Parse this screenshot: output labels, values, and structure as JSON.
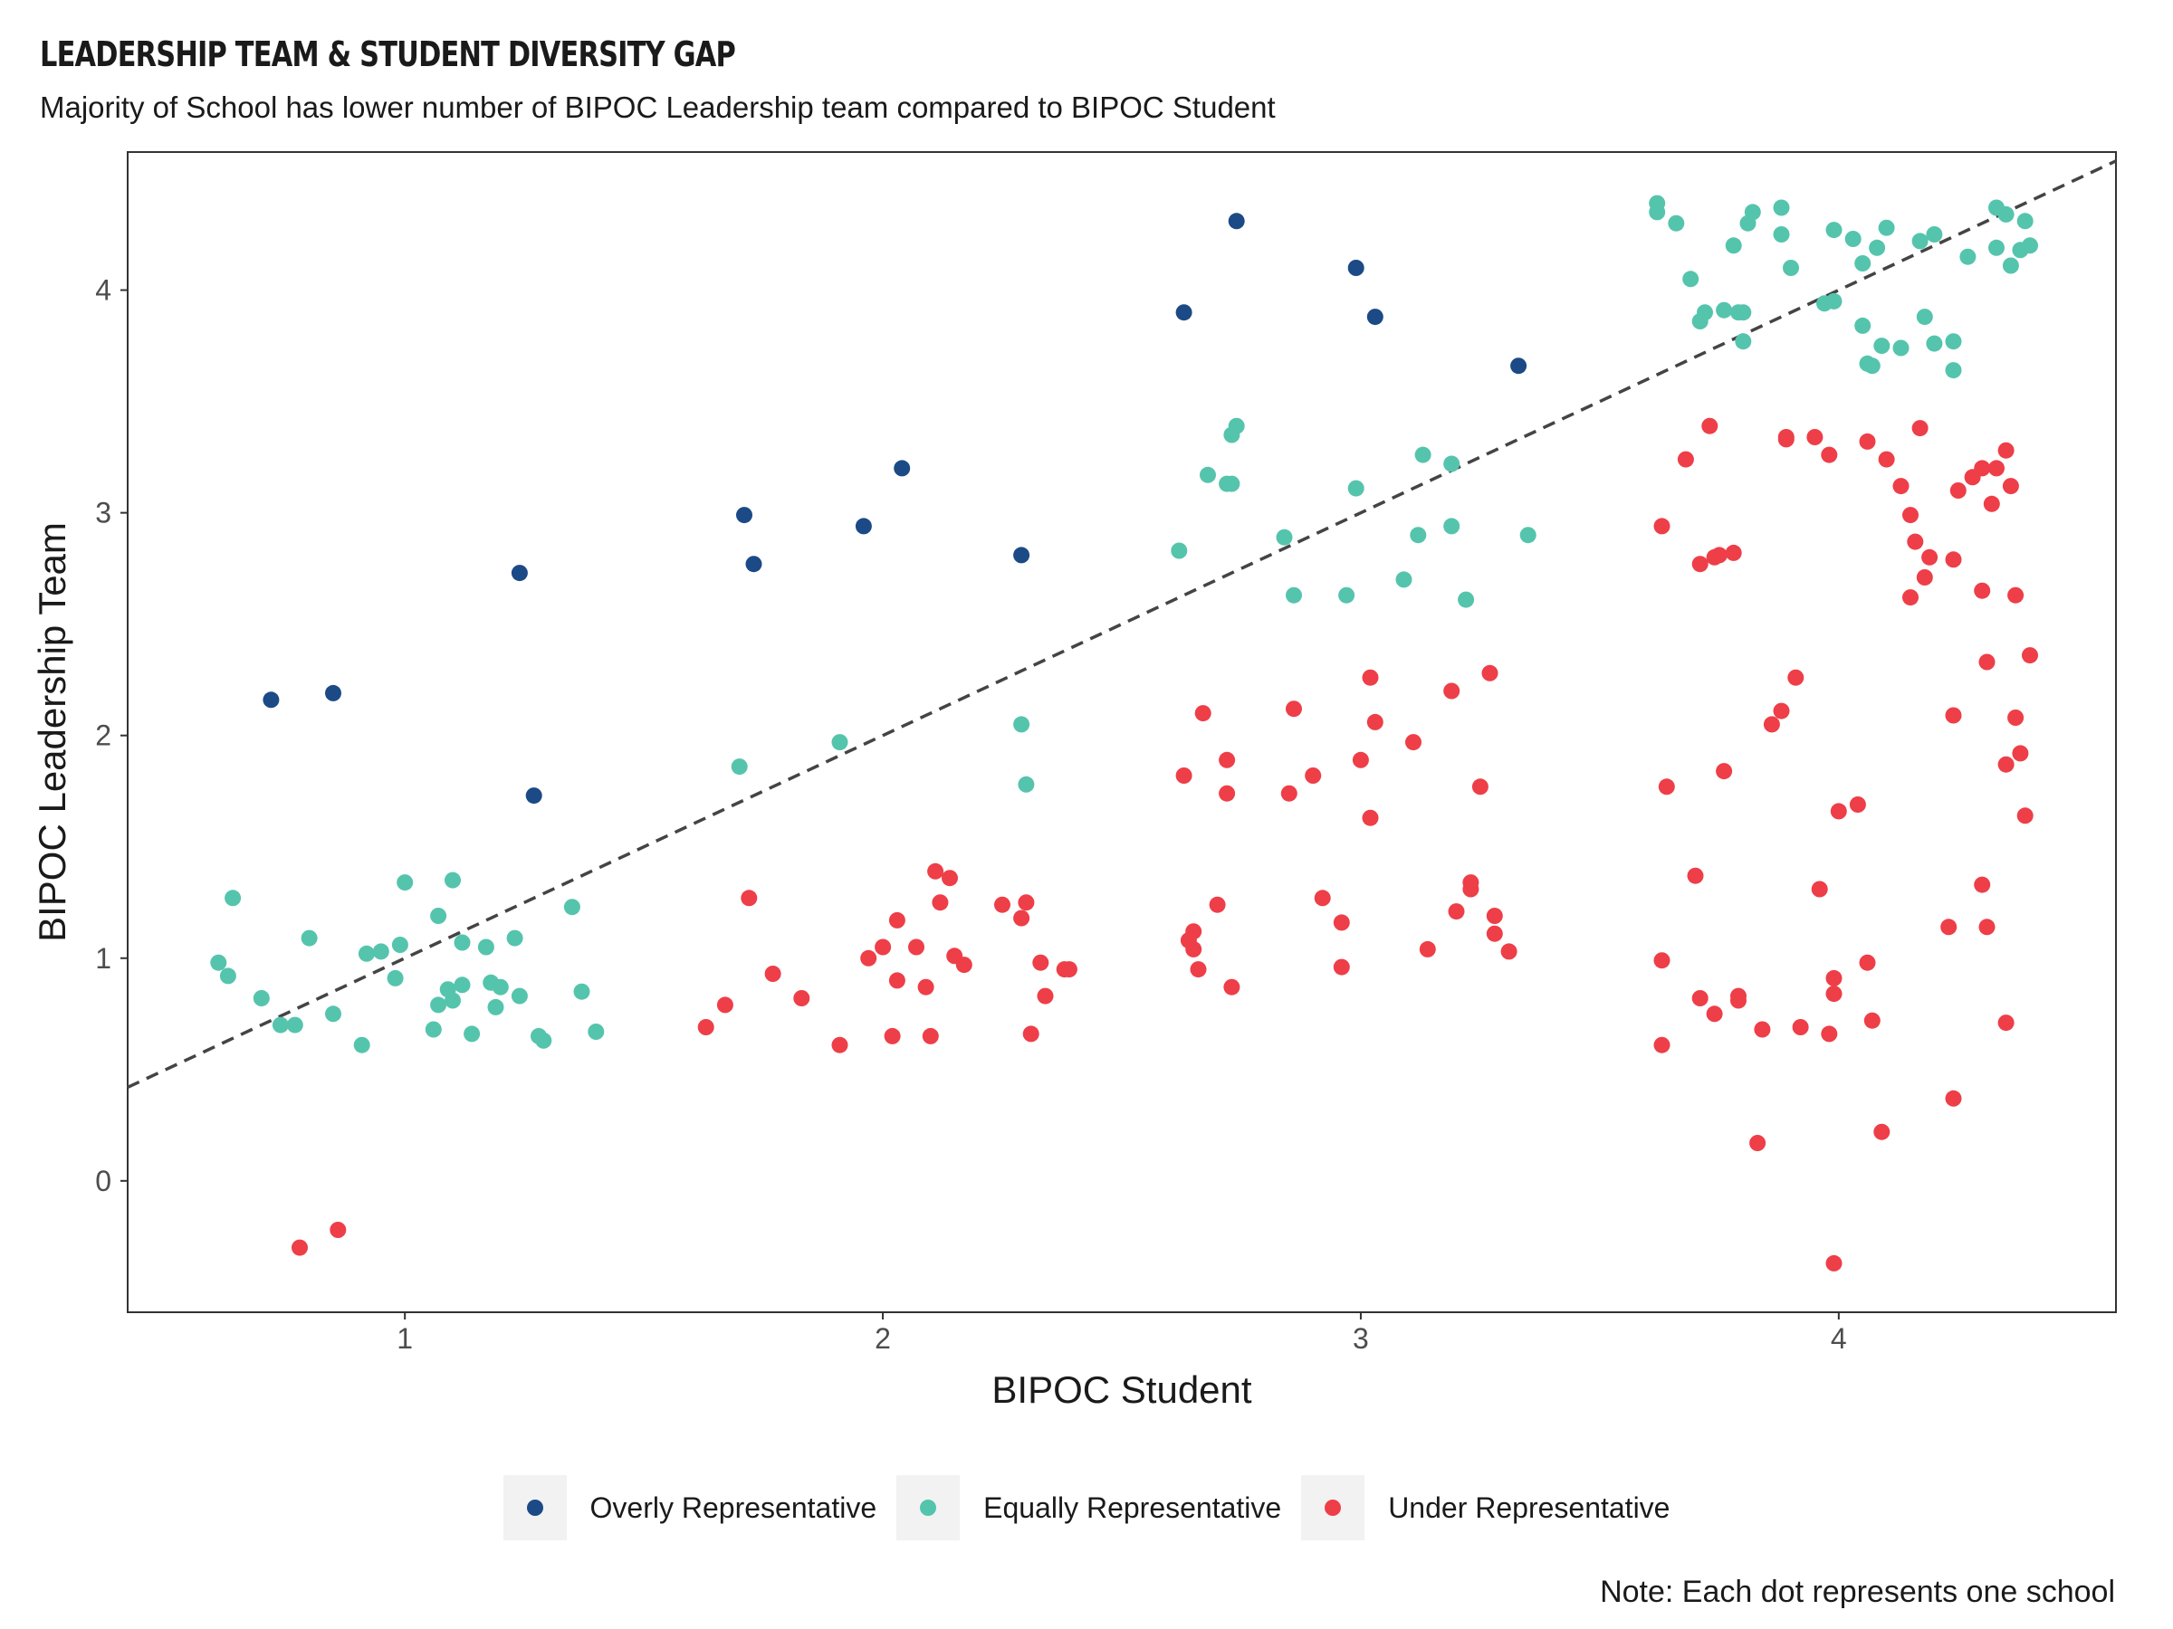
{
  "title": "LEADERSHIP TEAM & STUDENT DIVERSITY GAP",
  "subtitle": "Majority of School has lower number of BIPOC Leadership team compared to BIPOC Student",
  "caption": "Note: Each dot represents one school",
  "colors": {
    "overly": "#1b4a86",
    "equally": "#55c4ad",
    "under": "#ee3e48"
  },
  "legend": [
    {
      "label": "Overly Representative",
      "color": "#1b4a86"
    },
    {
      "label": "Equally Representative",
      "color": "#55c4ad"
    },
    {
      "label": "Under Representative",
      "color": "#ee3e48"
    }
  ],
  "chart_data": {
    "type": "scatter",
    "title": "LEADERSHIP TEAM & STUDENT DIVERSITY GAP",
    "subtitle": "Majority of School has lower number of BIPOC Leadership team compared to BIPOC Student",
    "xlabel": "BIPOC Student",
    "ylabel": "BIPOC Leadership Team",
    "xlim": [
      0.42,
      4.58
    ],
    "ylim": [
      -0.59,
      4.62
    ],
    "xticks": [
      1,
      2,
      3,
      4
    ],
    "yticks": [
      0,
      1,
      2,
      3,
      4
    ],
    "grid": false,
    "legend_position": "bottom",
    "reference_line": {
      "style": "dashed",
      "slope": 1,
      "intercept": 0
    },
    "series": [
      {
        "name": "Overly Representative",
        "color": "#1b4a86",
        "points": [
          [
            0.72,
            2.16
          ],
          [
            0.85,
            2.19
          ],
          [
            1.24,
            2.73
          ],
          [
            1.27,
            1.73
          ],
          [
            1.71,
            2.99
          ],
          [
            1.73,
            2.77
          ],
          [
            1.96,
            2.94
          ],
          [
            2.04,
            3.2
          ],
          [
            2.29,
            2.81
          ],
          [
            2.63,
            3.9
          ],
          [
            2.74,
            4.31
          ],
          [
            2.99,
            4.1
          ],
          [
            3.03,
            3.88
          ],
          [
            3.33,
            3.66
          ]
        ]
      },
      {
        "name": "Equally Representative",
        "color": "#55c4ad",
        "points": [
          [
            0.61,
            0.98
          ],
          [
            0.63,
            0.92
          ],
          [
            0.64,
            1.27
          ],
          [
            0.7,
            0.82
          ],
          [
            0.74,
            0.7
          ],
          [
            0.77,
            0.7
          ],
          [
            0.8,
            1.09
          ],
          [
            0.85,
            0.75
          ],
          [
            0.91,
            0.61
          ],
          [
            0.92,
            1.02
          ],
          [
            0.95,
            1.03
          ],
          [
            0.98,
            0.91
          ],
          [
            0.99,
            1.06
          ],
          [
            1.0,
            1.34
          ],
          [
            1.06,
            0.68
          ],
          [
            1.07,
            0.79
          ],
          [
            1.07,
            1.19
          ],
          [
            1.09,
            0.86
          ],
          [
            1.1,
            0.81
          ],
          [
            1.1,
            1.35
          ],
          [
            1.12,
            1.07
          ],
          [
            1.12,
            0.88
          ],
          [
            1.14,
            0.66
          ],
          [
            1.17,
            1.05
          ],
          [
            1.18,
            0.89
          ],
          [
            1.19,
            0.78
          ],
          [
            1.2,
            0.87
          ],
          [
            1.23,
            1.09
          ],
          [
            1.24,
            0.83
          ],
          [
            1.28,
            0.65
          ],
          [
            1.29,
            0.63
          ],
          [
            1.35,
            1.23
          ],
          [
            1.37,
            0.85
          ],
          [
            1.4,
            0.67
          ],
          [
            1.7,
            1.86
          ],
          [
            1.91,
            1.97
          ],
          [
            2.29,
            2.05
          ],
          [
            2.3,
            1.78
          ],
          [
            2.62,
            2.83
          ],
          [
            2.68,
            3.17
          ],
          [
            2.72,
            3.13
          ],
          [
            2.73,
            3.35
          ],
          [
            2.74,
            3.39
          ],
          [
            2.73,
            3.13
          ],
          [
            2.84,
            2.89
          ],
          [
            2.86,
            2.63
          ],
          [
            2.97,
            2.63
          ],
          [
            2.99,
            3.11
          ],
          [
            3.09,
            2.7
          ],
          [
            3.12,
            2.9
          ],
          [
            3.13,
            3.26
          ],
          [
            3.19,
            3.22
          ],
          [
            3.19,
            2.94
          ],
          [
            3.22,
            2.61
          ],
          [
            3.35,
            2.9
          ],
          [
            3.62,
            4.39
          ],
          [
            3.62,
            4.35
          ],
          [
            3.66,
            4.3
          ],
          [
            3.69,
            4.05
          ],
          [
            3.71,
            3.86
          ],
          [
            3.72,
            3.9
          ],
          [
            3.76,
            3.91
          ],
          [
            3.78,
            4.2
          ],
          [
            3.79,
            3.9
          ],
          [
            3.8,
            3.77
          ],
          [
            3.8,
            3.9
          ],
          [
            3.81,
            4.3
          ],
          [
            3.82,
            4.35
          ],
          [
            3.88,
            4.37
          ],
          [
            3.88,
            4.25
          ],
          [
            3.9,
            4.1
          ],
          [
            3.97,
            3.94
          ],
          [
            3.99,
            4.27
          ],
          [
            3.99,
            3.95
          ],
          [
            4.03,
            4.23
          ],
          [
            4.05,
            3.84
          ],
          [
            4.05,
            4.12
          ],
          [
            4.06,
            3.67
          ],
          [
            4.07,
            3.66
          ],
          [
            4.08,
            4.19
          ],
          [
            4.09,
            3.75
          ],
          [
            4.1,
            4.28
          ],
          [
            4.13,
            3.74
          ],
          [
            4.17,
            4.22
          ],
          [
            4.18,
            3.88
          ],
          [
            4.2,
            4.25
          ],
          [
            4.2,
            3.76
          ],
          [
            4.24,
            3.77
          ],
          [
            4.24,
            3.64
          ],
          [
            4.27,
            4.15
          ],
          [
            4.33,
            4.37
          ],
          [
            4.33,
            4.19
          ],
          [
            4.35,
            4.34
          ],
          [
            4.36,
            4.11
          ],
          [
            4.38,
            4.18
          ],
          [
            4.39,
            4.31
          ],
          [
            4.4,
            4.2
          ]
        ]
      },
      {
        "name": "Under Representative",
        "color": "#ee3e48",
        "points": [
          [
            0.78,
            -0.3
          ],
          [
            0.86,
            -0.22
          ],
          [
            1.63,
            0.69
          ],
          [
            1.67,
            0.79
          ],
          [
            1.72,
            1.27
          ],
          [
            1.77,
            0.93
          ],
          [
            1.83,
            0.82
          ],
          [
            1.91,
            0.61
          ],
          [
            1.97,
            1.0
          ],
          [
            2.0,
            1.05
          ],
          [
            2.02,
            0.65
          ],
          [
            2.03,
            1.17
          ],
          [
            2.03,
            0.9
          ],
          [
            2.07,
            1.05
          ],
          [
            2.09,
            0.87
          ],
          [
            2.1,
            0.65
          ],
          [
            2.11,
            1.39
          ],
          [
            2.12,
            1.25
          ],
          [
            2.14,
            1.36
          ],
          [
            2.15,
            1.01
          ],
          [
            2.17,
            0.97
          ],
          [
            2.25,
            1.24
          ],
          [
            2.29,
            1.18
          ],
          [
            2.3,
            1.25
          ],
          [
            2.31,
            0.66
          ],
          [
            2.33,
            0.98
          ],
          [
            2.34,
            0.83
          ],
          [
            2.38,
            0.95
          ],
          [
            2.39,
            0.95
          ],
          [
            2.63,
            1.82
          ],
          [
            2.64,
            1.08
          ],
          [
            2.65,
            1.04
          ],
          [
            2.65,
            1.12
          ],
          [
            2.66,
            0.95
          ],
          [
            2.67,
            2.1
          ],
          [
            2.7,
            1.24
          ],
          [
            2.72,
            1.74
          ],
          [
            2.72,
            1.89
          ],
          [
            2.73,
            0.87
          ],
          [
            2.85,
            1.74
          ],
          [
            2.86,
            2.12
          ],
          [
            2.9,
            1.82
          ],
          [
            2.92,
            1.27
          ],
          [
            2.96,
            1.16
          ],
          [
            2.96,
            0.96
          ],
          [
            3.0,
            1.89
          ],
          [
            3.02,
            2.26
          ],
          [
            3.02,
            1.63
          ],
          [
            3.03,
            2.06
          ],
          [
            3.11,
            1.97
          ],
          [
            3.14,
            1.04
          ],
          [
            3.19,
            2.2
          ],
          [
            3.2,
            1.21
          ],
          [
            3.23,
            1.34
          ],
          [
            3.23,
            1.31
          ],
          [
            3.25,
            1.77
          ],
          [
            3.27,
            2.28
          ],
          [
            3.28,
            1.11
          ],
          [
            3.28,
            1.19
          ],
          [
            3.31,
            1.03
          ],
          [
            3.63,
            2.94
          ],
          [
            3.63,
            0.99
          ],
          [
            3.63,
            0.61
          ],
          [
            3.64,
            1.77
          ],
          [
            3.68,
            3.24
          ],
          [
            3.7,
            1.37
          ],
          [
            3.71,
            0.82
          ],
          [
            3.71,
            2.77
          ],
          [
            3.73,
            3.39
          ],
          [
            3.74,
            0.75
          ],
          [
            3.74,
            2.8
          ],
          [
            3.75,
            2.81
          ],
          [
            3.76,
            1.84
          ],
          [
            3.78,
            2.82
          ],
          [
            3.79,
            0.81
          ],
          [
            3.79,
            0.83
          ],
          [
            3.83,
            0.17
          ],
          [
            3.84,
            0.68
          ],
          [
            3.86,
            2.05
          ],
          [
            3.88,
            2.11
          ],
          [
            3.89,
            3.34
          ],
          [
            3.89,
            3.33
          ],
          [
            3.91,
            2.26
          ],
          [
            3.92,
            0.69
          ],
          [
            3.95,
            3.34
          ],
          [
            3.96,
            1.31
          ],
          [
            3.98,
            0.66
          ],
          [
            3.99,
            0.84
          ],
          [
            3.99,
            0.91
          ],
          [
            3.98,
            3.26
          ],
          [
            3.99,
            -0.37
          ],
          [
            4.0,
            1.66
          ],
          [
            4.04,
            1.69
          ],
          [
            4.06,
            0.98
          ],
          [
            4.06,
            3.32
          ],
          [
            4.07,
            0.72
          ],
          [
            4.09,
            0.22
          ],
          [
            4.1,
            3.24
          ],
          [
            4.13,
            3.12
          ],
          [
            4.15,
            2.62
          ],
          [
            4.15,
            2.99
          ],
          [
            4.16,
            2.87
          ],
          [
            4.17,
            3.38
          ],
          [
            4.18,
            2.71
          ],
          [
            4.19,
            2.8
          ],
          [
            4.23,
            1.14
          ],
          [
            4.24,
            2.09
          ],
          [
            4.24,
            0.37
          ],
          [
            4.24,
            2.79
          ],
          [
            4.25,
            3.1
          ],
          [
            4.28,
            3.16
          ],
          [
            4.3,
            3.2
          ],
          [
            4.3,
            2.65
          ],
          [
            4.3,
            1.33
          ],
          [
            4.31,
            2.33
          ],
          [
            4.31,
            1.14
          ],
          [
            4.32,
            3.04
          ],
          [
            4.33,
            3.2
          ],
          [
            4.35,
            3.28
          ],
          [
            4.35,
            1.87
          ],
          [
            4.35,
            0.71
          ],
          [
            4.36,
            3.12
          ],
          [
            4.37,
            2.63
          ],
          [
            4.37,
            2.08
          ],
          [
            4.38,
            1.92
          ],
          [
            4.39,
            1.64
          ],
          [
            4.4,
            2.36
          ]
        ]
      }
    ]
  }
}
